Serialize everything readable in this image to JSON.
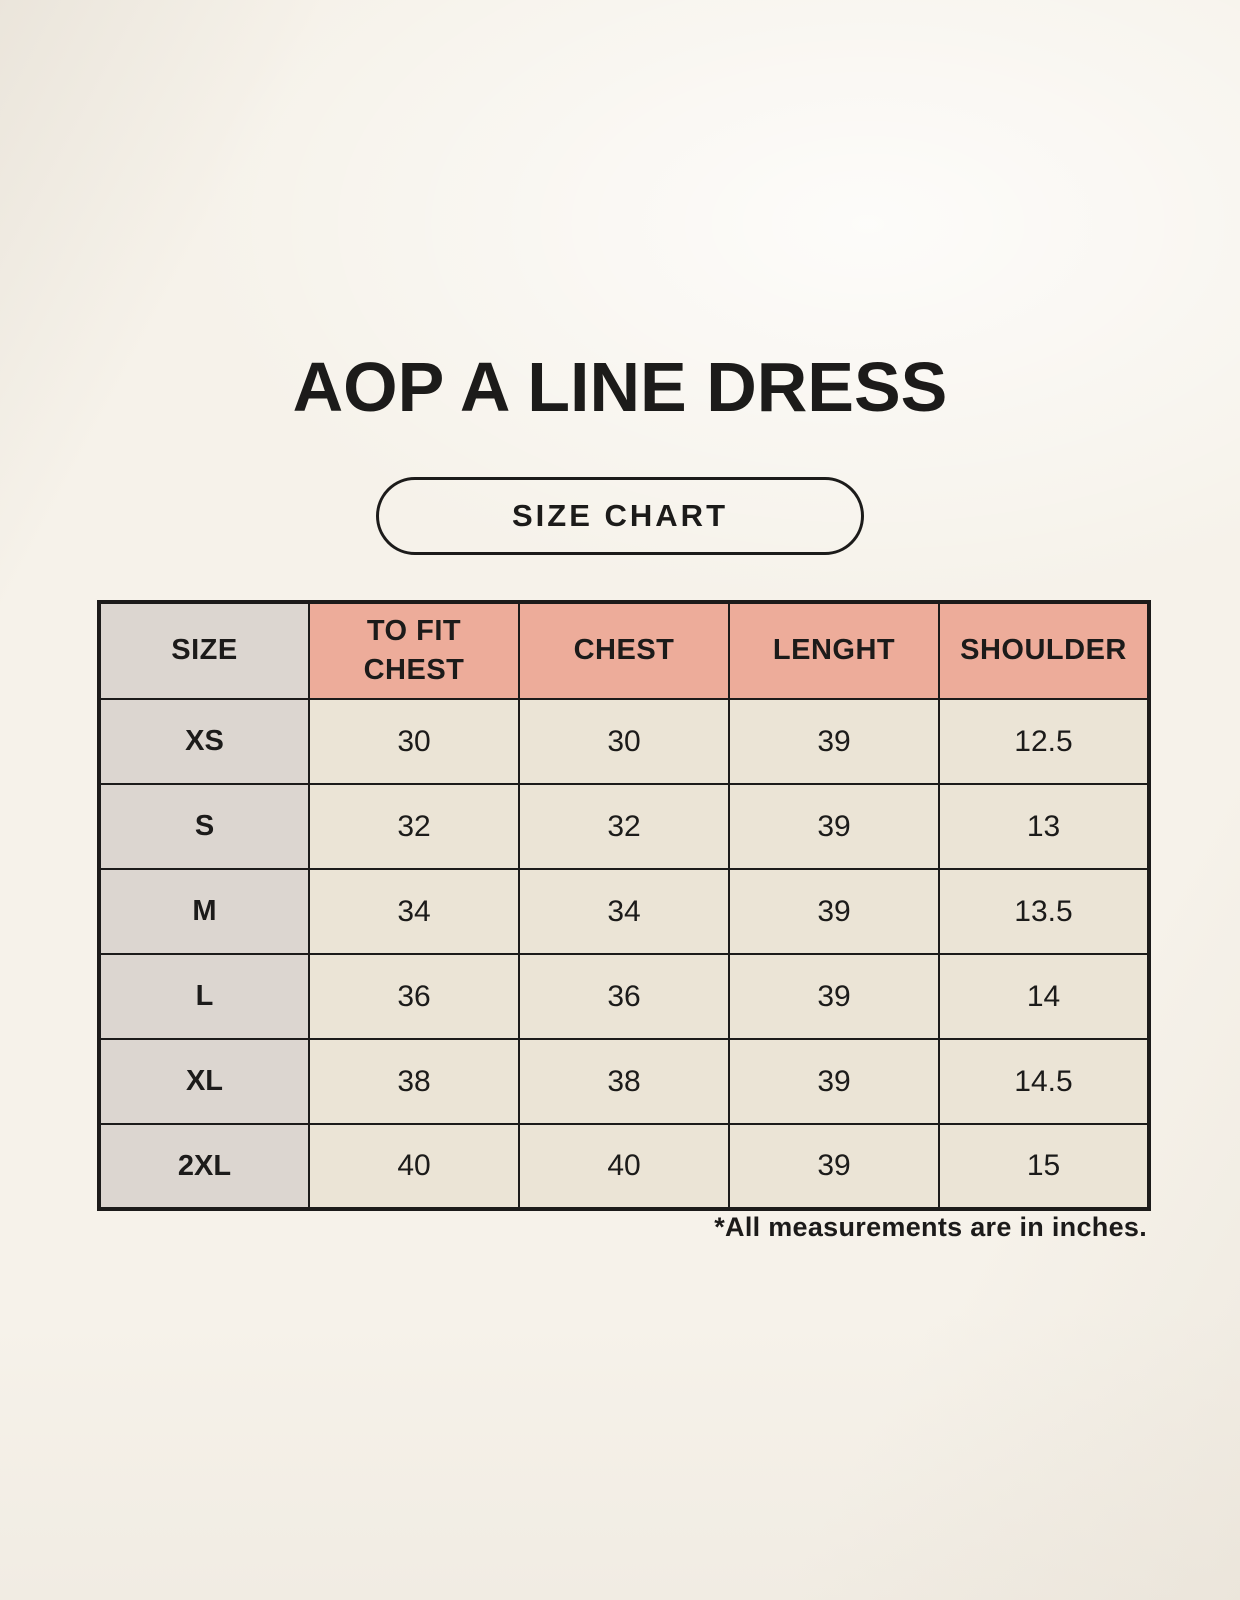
{
  "header": {
    "title": "AOP A LINE DRESS",
    "badge_label": "SIZE CHART"
  },
  "size_table": {
    "columns": [
      "SIZE",
      "TO FIT\nCHEST",
      "CHEST",
      "LENGHT",
      "SHOULDER"
    ],
    "rows": [
      {
        "size": "XS",
        "to_fit_chest": "30",
        "chest": "30",
        "length": "39",
        "shoulder": "12.5"
      },
      {
        "size": "S",
        "to_fit_chest": "32",
        "chest": "32",
        "length": "39",
        "shoulder": "13"
      },
      {
        "size": "M",
        "to_fit_chest": "34",
        "chest": "34",
        "length": "39",
        "shoulder": "13.5"
      },
      {
        "size": "L",
        "to_fit_chest": "36",
        "chest": "36",
        "length": "39",
        "shoulder": "14"
      },
      {
        "size": "XL",
        "to_fit_chest": "38",
        "chest": "38",
        "length": "39",
        "shoulder": "14.5"
      },
      {
        "size": "2XL",
        "to_fit_chest": "40",
        "chest": "40",
        "length": "39",
        "shoulder": "15"
      }
    ],
    "footnote": "*All measurements are in inches.",
    "units": "inches"
  },
  "colors": {
    "page_bg": "#f6f2ea",
    "header_pink": "#edac9a",
    "size_col_gray": "#dcd6d0",
    "cell_cream": "#ebe4d6",
    "ink": "#1c1b1a"
  }
}
